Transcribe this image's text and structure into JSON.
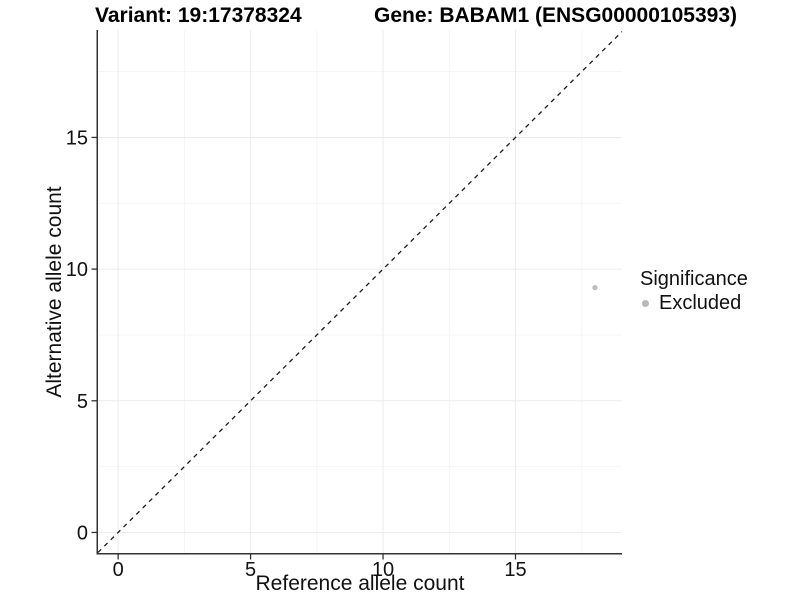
{
  "chart_data": {
    "type": "scatter",
    "title_left": "Variant: 19:17378324",
    "title_right": "Gene: BABAM1 (ENSG00000105393)",
    "xlabel": "Reference allele count",
    "ylabel": "Alternative allele count",
    "xlim": [
      -0.76,
      19.02
    ],
    "ylim": [
      -0.78,
      19.08
    ],
    "xticks": [
      0,
      5,
      10,
      15
    ],
    "yticks": [
      0,
      5,
      10,
      15
    ],
    "xticks_minor": [
      2.5,
      7.5,
      12.5,
      17.5
    ],
    "yticks_minor": [
      2.5,
      7.5,
      12.5,
      17.5
    ],
    "grid": "on",
    "reference_line": {
      "kind": "identity y=x",
      "style": "dashed"
    },
    "series": [
      {
        "name": "Excluded",
        "points": [
          [
            18,
            9.3
          ]
        ],
        "color": "#bcbcbc",
        "point_radius": 2.6
      }
    ],
    "legend": {
      "title": "Significance",
      "position": "right-middle",
      "items": [
        {
          "label": "Excluded",
          "color": "#b9b9b9"
        }
      ]
    },
    "style": {
      "background": "#ffffff",
      "grid_major": "#ececec",
      "grid_minor": "#f5f5f5",
      "axis_line": "#333333",
      "tick_text": "#111111",
      "dashed_line": "#1a1a1a"
    }
  }
}
